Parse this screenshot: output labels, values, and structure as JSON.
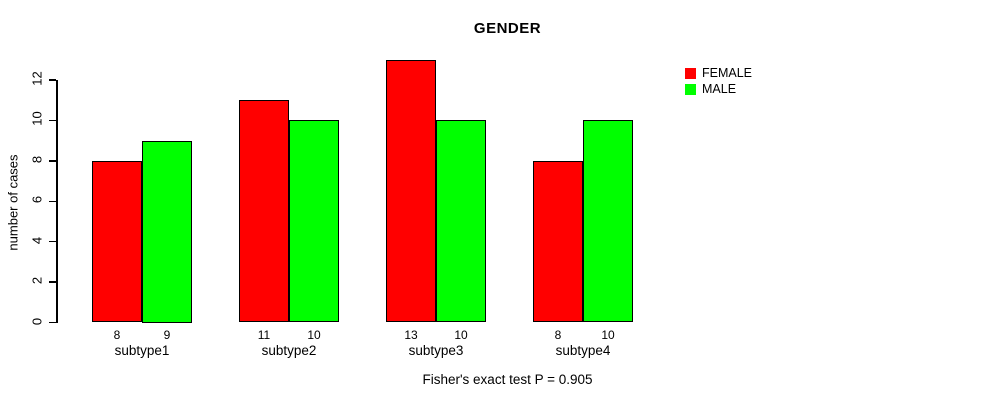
{
  "title": "GENDER",
  "caption": "Fisher's exact test P = 0.905",
  "colors": {
    "female": "#ff0000",
    "male": "#00ff00",
    "axis": "#000000",
    "background": "#ffffff"
  },
  "chart_data": {
    "type": "bar",
    "title": "GENDER",
    "categories": [
      "subtype1",
      "subtype2",
      "subtype3",
      "subtype4"
    ],
    "series": [
      {
        "name": "FEMALE",
        "color": "#ff0000",
        "values": [
          8,
          11,
          13,
          8
        ]
      },
      {
        "name": "MALE",
        "color": "#00ff00",
        "values": [
          9,
          10,
          10,
          10
        ]
      }
    ],
    "xlabel": "",
    "ylabel": "number of cases",
    "yticks": [
      0,
      2,
      4,
      6,
      8,
      10,
      12
    ],
    "ylim": [
      0,
      13
    ],
    "grid": false,
    "bar_value_labels": true,
    "legend_position": "top-right",
    "annotation": "Fisher's exact test P = 0.905"
  }
}
